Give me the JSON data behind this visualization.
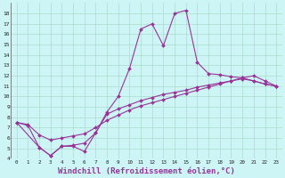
{
  "bg_color": "#cef5f5",
  "grid_color": "#aaddcc",
  "line_color": "#993399",
  "xlabel": "Windchill (Refroidissement éolien,°C)",
  "xlim": [
    -0.5,
    23.5
  ],
  "ylim": [
    4,
    19
  ],
  "yticks": [
    4,
    5,
    6,
    7,
    8,
    9,
    10,
    11,
    12,
    13,
    14,
    15,
    16,
    17,
    18
  ],
  "xticks": [
    0,
    1,
    2,
    3,
    4,
    5,
    6,
    7,
    8,
    9,
    10,
    11,
    12,
    13,
    14,
    15,
    16,
    17,
    18,
    19,
    20,
    21,
    22,
    23
  ],
  "line1_x": [
    0,
    1,
    2,
    3,
    4,
    5,
    6,
    7,
    8,
    9,
    10,
    11,
    12,
    13,
    14,
    15,
    16,
    17,
    18,
    19,
    20,
    21,
    22,
    23
  ],
  "line1_y": [
    7.5,
    7.2,
    5.1,
    4.3,
    5.2,
    5.2,
    4.7,
    6.5,
    8.5,
    10.0,
    12.7,
    16.5,
    17.0,
    14.9,
    18.0,
    18.3,
    13.3,
    12.2,
    12.1,
    11.9,
    11.8,
    11.5,
    11.2,
    11.0
  ],
  "line2_x": [
    0,
    2,
    3,
    4,
    5,
    6,
    7,
    8,
    9,
    10,
    11,
    12,
    13,
    14,
    15,
    16,
    17,
    18,
    19,
    20,
    21,
    22,
    23
  ],
  "line2_y": [
    7.5,
    5.1,
    4.3,
    5.2,
    5.3,
    5.5,
    6.5,
    8.3,
    8.8,
    9.2,
    9.6,
    9.9,
    10.2,
    10.4,
    10.6,
    10.9,
    11.1,
    11.3,
    11.5,
    11.8,
    12.0,
    11.5,
    11.0
  ],
  "line3_x": [
    0,
    1,
    2,
    3,
    4,
    5,
    6,
    7,
    8,
    9,
    10,
    11,
    12,
    13,
    14,
    15,
    16,
    17,
    18,
    19,
    20,
    21,
    22,
    23
  ],
  "line3_y": [
    7.5,
    7.3,
    6.3,
    5.8,
    6.0,
    6.2,
    6.4,
    7.0,
    7.7,
    8.2,
    8.7,
    9.1,
    9.4,
    9.7,
    10.0,
    10.3,
    10.6,
    10.9,
    11.2,
    11.5,
    11.7,
    11.5,
    11.2,
    11.0
  ]
}
